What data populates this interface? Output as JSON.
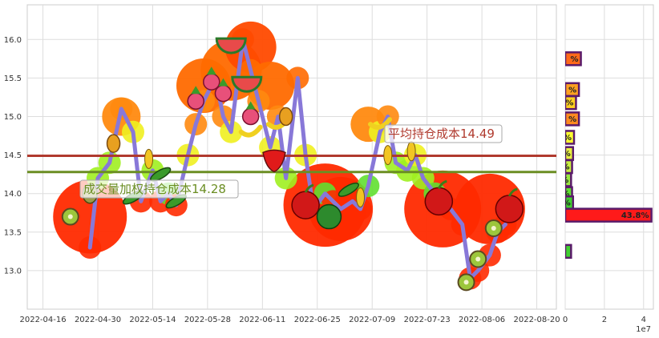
{
  "chart_data": [
    {
      "type": "line",
      "x": [
        "2022-04-28",
        "2022-04-30",
        "2022-05-03",
        "2022-05-06",
        "2022-05-09",
        "2022-05-11",
        "2022-05-14",
        "2022-05-16",
        "2022-05-18",
        "2022-05-20",
        "2022-05-23",
        "2022-05-25",
        "2022-05-27",
        "2022-05-30",
        "2022-06-01",
        "2022-06-03",
        "2022-06-06",
        "2022-06-08",
        "2022-06-10",
        "2022-06-13",
        "2022-06-15",
        "2022-06-17",
        "2022-06-20",
        "2022-06-22",
        "2022-06-24",
        "2022-06-27",
        "2022-06-29",
        "2022-07-01",
        "2022-07-04",
        "2022-07-06",
        "2022-07-08",
        "2022-07-11",
        "2022-07-13",
        "2022-07-15",
        "2022-07-18",
        "2022-07-20",
        "2022-07-22",
        "2022-07-25",
        "2022-07-27",
        "2022-07-29",
        "2022-08-01",
        "2022-08-03",
        "2022-08-05",
        "2022-08-08",
        "2022-08-10",
        "2022-08-12"
      ],
      "y": [
        13.3,
        14.2,
        14.4,
        15.1,
        14.8,
        13.9,
        14.3,
        13.9,
        14.0,
        13.85,
        14.5,
        14.9,
        15.2,
        15.5,
        15.0,
        14.8,
        16.0,
        15.6,
        15.2,
        14.6,
        15.0,
        14.2,
        15.5,
        14.5,
        13.8,
        14.0,
        13.9,
        13.8,
        13.9,
        13.8,
        14.1,
        14.8,
        15.0,
        14.4,
        14.3,
        14.5,
        14.2,
        14.0,
        13.9,
        13.8,
        13.6,
        12.9,
        13.0,
        13.2,
        13.5,
        13.6
      ],
      "ylim": [
        12.5,
        16.45
      ],
      "xlim": [
        "2022-04-12",
        "2022-08-25"
      ],
      "xticks": [
        "2022-04-16",
        "2022-04-30",
        "2022-05-14",
        "2022-05-28",
        "2022-06-11",
        "2022-06-25",
        "2022-07-09",
        "2022-07-23",
        "2022-08-06",
        "2022-08-20"
      ],
      "yticks": [
        "13.0",
        "13.5",
        "14.0",
        "14.5",
        "15.0",
        "15.5",
        "16.0"
      ],
      "hlines": [
        {
          "value": 14.49,
          "color": "#b03a2e",
          "label": "平均持仓成本14.49"
        },
        {
          "value": 14.28,
          "color": "#6b8e23",
          "label": "成交量加权持仓成本14.28"
        }
      ],
      "grid": true,
      "line_color": "#8878d8"
    },
    {
      "type": "bar",
      "orientation": "horizontal",
      "xlim": [
        0,
        4.5
      ],
      "xticks": [
        "0",
        "2",
        "4"
      ],
      "xscale_label": "1e7",
      "bars": [
        {
          "y": 15.75,
          "value": 0.8,
          "label": "%",
          "color": "#ff6a1a"
        },
        {
          "y": 15.35,
          "value": 0.7,
          "label": "%",
          "color": "#ffa020"
        },
        {
          "y": 15.18,
          "value": 0.55,
          "label": "%",
          "color": "#ffd020"
        },
        {
          "y": 14.97,
          "value": 0.7,
          "label": "%",
          "color": "#ff8a20"
        },
        {
          "y": 14.73,
          "value": 0.45,
          "label": "%",
          "color": "#ffff30"
        },
        {
          "y": 14.52,
          "value": 0.4,
          "label": "%",
          "color": "#e8f040"
        },
        {
          "y": 14.35,
          "value": 0.35,
          "label": "%",
          "color": "#c8f040"
        },
        {
          "y": 14.18,
          "value": 0.3,
          "label": "%",
          "color": "#98e840"
        },
        {
          "y": 14.0,
          "value": 0.35,
          "label": "%",
          "color": "#60e030"
        },
        {
          "y": 13.88,
          "value": 0.4,
          "label": "%",
          "color": "#40d030"
        },
        {
          "y": 13.72,
          "value": 4.4,
          "label": "43.8%",
          "color": "#ff1a1a"
        },
        {
          "y": 13.25,
          "value": 0.3,
          "label": "",
          "color": "#40d030"
        }
      ]
    }
  ]
}
